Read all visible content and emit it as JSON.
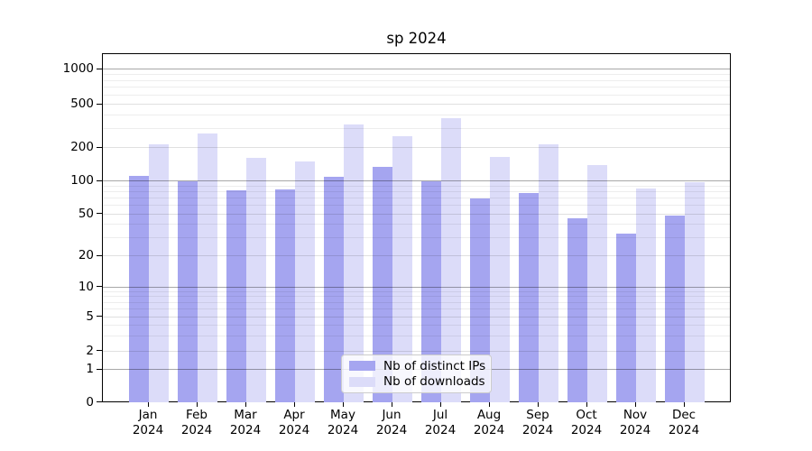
{
  "title": "sp 2024",
  "chart_data": {
    "type": "bar",
    "title": "sp 2024",
    "months": [
      "Jan",
      "Feb",
      "Mar",
      "Apr",
      "May",
      "Jun",
      "Jul",
      "Aug",
      "Sep",
      "Oct",
      "Nov",
      "Dec"
    ],
    "year": "2024",
    "categories": [
      "Jan 2024",
      "Feb 2024",
      "Mar 2024",
      "Apr 2024",
      "May 2024",
      "Jun 2024",
      "Jul 2024",
      "Aug 2024",
      "Sep 2024",
      "Oct 2024",
      "Nov 2024",
      "Dec 2024"
    ],
    "series": [
      {
        "name": "Nb of distinct IPs",
        "color": "#a5a5f0",
        "values": [
          112,
          100,
          83,
          85,
          110,
          136,
          100,
          70,
          79,
          46,
          33,
          49
        ]
      },
      {
        "name": "Nb of downloads",
        "color": "#dcdcf9",
        "values": [
          216,
          274,
          163,
          151,
          327,
          258,
          377,
          166,
          215,
          141,
          87,
          99
        ]
      }
    ],
    "y_ticks": [
      0,
      1,
      2,
      5,
      10,
      20,
      50,
      100,
      200,
      500,
      1000
    ],
    "y_scale": "log-like with 0 baseline",
    "ylim": [
      0,
      1400
    ],
    "grid": true,
    "legend_position": "lower center"
  }
}
